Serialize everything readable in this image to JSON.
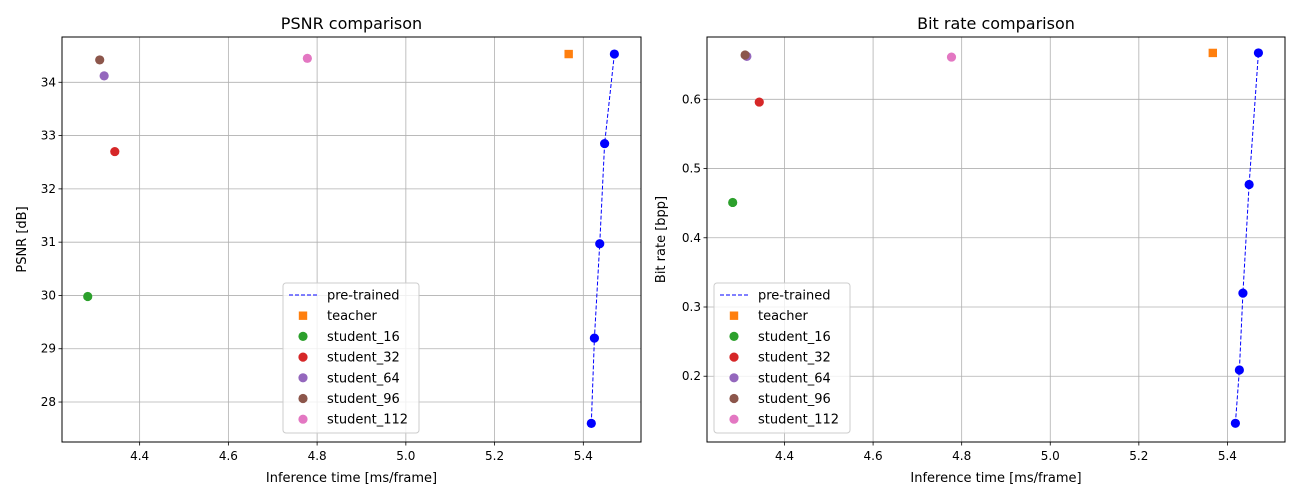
{
  "figure": {
    "background": "#ffffff"
  },
  "chart_data": [
    {
      "type": "scatter",
      "title": "PSNR comparison",
      "xlabel": "Inference time [ms/frame]",
      "ylabel": "PSNR [dB]",
      "xlim": [
        4.225,
        5.53
      ],
      "ylim": [
        27.25,
        34.85
      ],
      "xticks": [
        4.4,
        4.6,
        4.8,
        5.0,
        5.2,
        5.4
      ],
      "xtick_labels": [
        "4.4",
        "4.6",
        "4.8",
        "5.0",
        "5.2",
        "5.4"
      ],
      "yticks": [
        28,
        29,
        30,
        31,
        32,
        33,
        34
      ],
      "ytick_labels": [
        "28",
        "29",
        "30",
        "31",
        "32",
        "33",
        "34"
      ],
      "grid": true,
      "legend_position": "lower-center",
      "series": [
        {
          "name": "pre-trained",
          "kind": "line",
          "style": "dashed",
          "color": "#0000ff",
          "marker": "circle",
          "x": [
            5.418,
            5.425,
            5.437,
            5.448,
            5.47
          ],
          "y": [
            27.6,
            29.2,
            30.97,
            32.85,
            34.53
          ]
        },
        {
          "name": "teacher",
          "kind": "point",
          "marker": "square",
          "color": "#ff7f0e",
          "x": [
            5.367
          ],
          "y": [
            34.53
          ]
        },
        {
          "name": "student_16",
          "kind": "point",
          "marker": "circle",
          "color": "#2ca02c",
          "x": [
            4.283
          ],
          "y": [
            29.98
          ]
        },
        {
          "name": "student_32",
          "kind": "point",
          "marker": "circle",
          "color": "#d62728",
          "x": [
            4.344
          ],
          "y": [
            32.7
          ]
        },
        {
          "name": "student_64",
          "kind": "point",
          "marker": "circle",
          "color": "#9467bd",
          "x": [
            4.32
          ],
          "y": [
            34.12
          ]
        },
        {
          "name": "student_96",
          "kind": "point",
          "marker": "circle",
          "color": "#8c564b",
          "x": [
            4.31
          ],
          "y": [
            34.42
          ]
        },
        {
          "name": "student_112",
          "kind": "point",
          "marker": "circle",
          "color": "#e377c2",
          "x": [
            4.778
          ],
          "y": [
            34.45
          ]
        }
      ]
    },
    {
      "type": "scatter",
      "title": "Bit rate comparison",
      "xlabel": "Inference time [ms/frame]",
      "ylabel": "Bit rate [bpp]",
      "xlim": [
        4.225,
        5.53
      ],
      "ylim": [
        0.105,
        0.69
      ],
      "xticks": [
        4.4,
        4.6,
        4.8,
        5.0,
        5.2,
        5.4
      ],
      "xtick_labels": [
        "4.4",
        "4.6",
        "4.8",
        "5.0",
        "5.2",
        "5.4"
      ],
      "yticks": [
        0.2,
        0.3,
        0.4,
        0.5,
        0.6
      ],
      "ytick_labels": [
        "0.2",
        "0.3",
        "0.4",
        "0.5",
        "0.6"
      ],
      "grid": true,
      "legend_position": "lower-left",
      "series": [
        {
          "name": "pre-trained",
          "kind": "line",
          "style": "dashed",
          "color": "#0000ff",
          "marker": "circle",
          "x": [
            5.418,
            5.427,
            5.435,
            5.449,
            5.47
          ],
          "y": [
            0.132,
            0.209,
            0.32,
            0.477,
            0.667
          ]
        },
        {
          "name": "teacher",
          "kind": "point",
          "marker": "square",
          "color": "#ff7f0e",
          "x": [
            5.367
          ],
          "y": [
            0.667
          ]
        },
        {
          "name": "student_16",
          "kind": "point",
          "marker": "circle",
          "color": "#2ca02c",
          "x": [
            4.283
          ],
          "y": [
            0.451
          ]
        },
        {
          "name": "student_32",
          "kind": "point",
          "marker": "circle",
          "color": "#d62728",
          "x": [
            4.343
          ],
          "y": [
            0.596
          ]
        },
        {
          "name": "student_64",
          "kind": "point",
          "marker": "circle",
          "color": "#9467bd",
          "x": [
            4.315
          ],
          "y": [
            0.662
          ]
        },
        {
          "name": "student_96",
          "kind": "point",
          "marker": "circle",
          "color": "#8c564b",
          "x": [
            4.311
          ],
          "y": [
            0.664
          ]
        },
        {
          "name": "student_112",
          "kind": "point",
          "marker": "circle",
          "color": "#e377c2",
          "x": [
            4.777
          ],
          "y": [
            0.661
          ]
        }
      ]
    }
  ]
}
